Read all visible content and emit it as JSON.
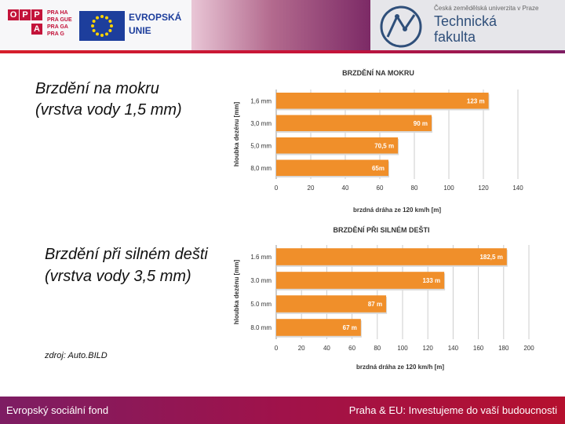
{
  "header": {
    "oppa_letters": [
      "O",
      "P",
      "P",
      "A"
    ],
    "praha_lines": [
      "PRA HA",
      "PRA GUE",
      "PRA GA",
      "PRA G"
    ],
    "eu_line1": "EVROPSKÁ",
    "eu_line2": "UNIE",
    "university": "Česká zemědělská univerzita v Praze",
    "faculty_line1": "Technická",
    "faculty_line2": "fakulta"
  },
  "labels": {
    "chart1_caption": "Brzdění na mokru (vrstva vody 1,5 mm)",
    "chart2_caption": "Brzdění při silném dešti (vrstva vody 3,5  mm)",
    "source": "zdroj: Auto.BILD"
  },
  "footer": {
    "left": "Evropský sociální fond",
    "right": "Praha & EU: Investujeme do vaší budoucnosti"
  },
  "colors": {
    "bar": "#f08f2a",
    "bar_label": "#ffffff",
    "grid": "#cccccc",
    "footer": "#a0124a",
    "header_line": "#d61f2b"
  },
  "chart_data": [
    {
      "type": "bar",
      "orientation": "horizontal",
      "title": "BRZDĚNÍ NA MOKRU",
      "ylabel": "hloubka dezénu [mm]",
      "xlabel": "brzdná dráha ze 120 km/h [m]",
      "categories": [
        "1,6 mm",
        "3,0 mm",
        "5,0 mm",
        "8,0 mm"
      ],
      "values": [
        123,
        90,
        70.5,
        65
      ],
      "data_labels": [
        "123 m",
        "90 m",
        "70,5 m",
        "65m"
      ],
      "xlim": [
        0,
        140
      ],
      "xticks": [
        "0",
        "20",
        "40",
        "60",
        "80",
        "100",
        "120",
        "140"
      ],
      "grid": true
    },
    {
      "type": "bar",
      "orientation": "horizontal",
      "title": "BRZDĚNÍ PŘI SILNÉM DEŠTI",
      "ylabel": "hloubka dezénu [mm]",
      "xlabel": "brzdná dráha ze 120 km/h [m]",
      "categories": [
        "1.6 mm",
        "3.0 mm",
        "5.0 mm",
        "8.0 mm"
      ],
      "values": [
        182.5,
        133,
        87,
        67
      ],
      "data_labels": [
        "182,5 m",
        "133 m",
        "87 m",
        "67 m"
      ],
      "xlim": [
        0,
        200
      ],
      "xticks": [
        "0",
        "20",
        "40",
        "60",
        "80",
        "100",
        "120",
        "140",
        "160",
        "180",
        "200"
      ],
      "grid": true
    }
  ]
}
